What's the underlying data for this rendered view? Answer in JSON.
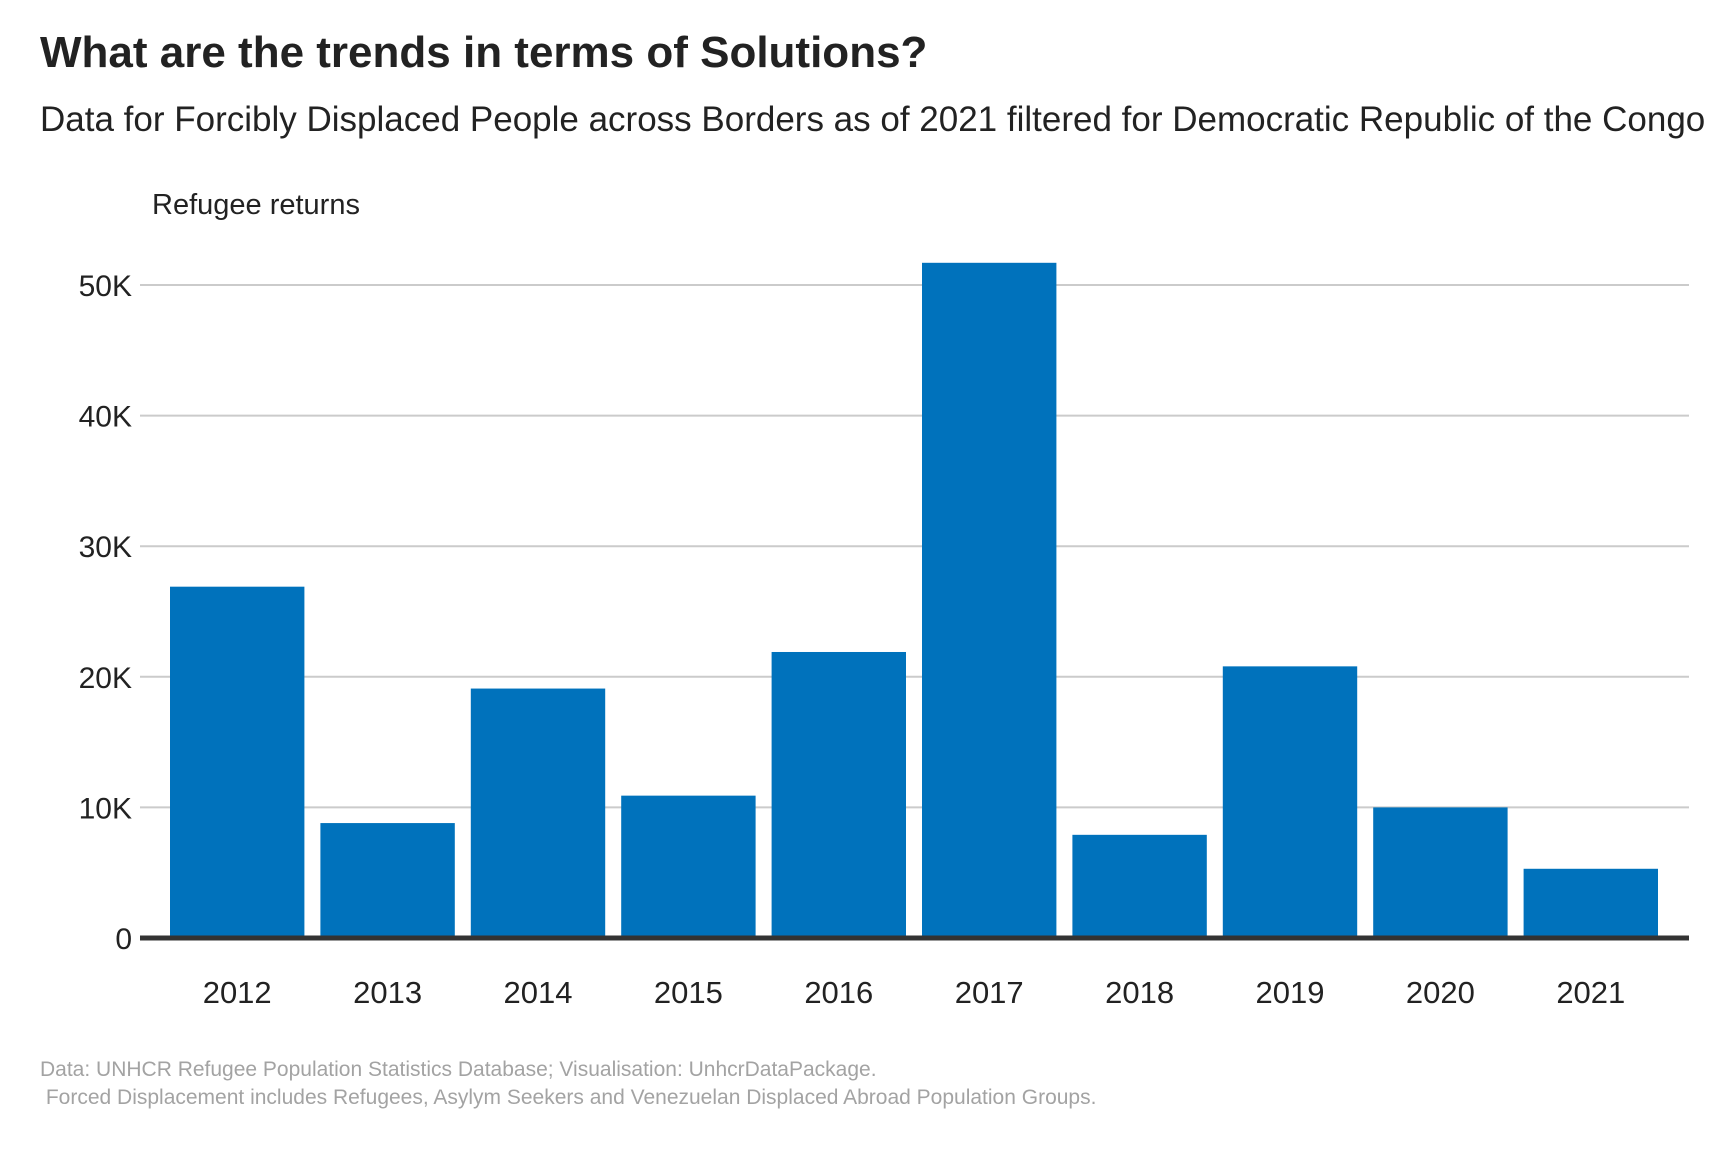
{
  "chart_data": {
    "type": "bar",
    "title": "What are the trends in terms of Solutions?",
    "subtitle": "Data for Forcibly Displaced People across Borders as of 2021 filtered for Democratic Republic of the Congo",
    "ylabel": "Refugee returns",
    "xlabel": "",
    "categories": [
      "2012",
      "2013",
      "2014",
      "2015",
      "2016",
      "2017",
      "2018",
      "2019",
      "2020",
      "2021"
    ],
    "values": [
      26900,
      8800,
      19100,
      10900,
      21900,
      51700,
      7900,
      20800,
      10000,
      5300
    ],
    "ylim": [
      0,
      52000
    ],
    "yticks": [
      0,
      10000,
      20000,
      30000,
      40000,
      50000
    ],
    "ytick_labels": [
      "0",
      "10K",
      "20K",
      "30K",
      "40K",
      "50K"
    ],
    "grid": true,
    "legend": "none",
    "bar_color": "#0072bc"
  },
  "caption_line_1": "Data: UNHCR Refugee Population Statistics Database; Visualisation: UnhcrDataPackage.",
  "caption_line_2": " Forced Displacement includes Refugees, Asylym Seekers and Venezuelan Displaced Abroad Population Groups."
}
